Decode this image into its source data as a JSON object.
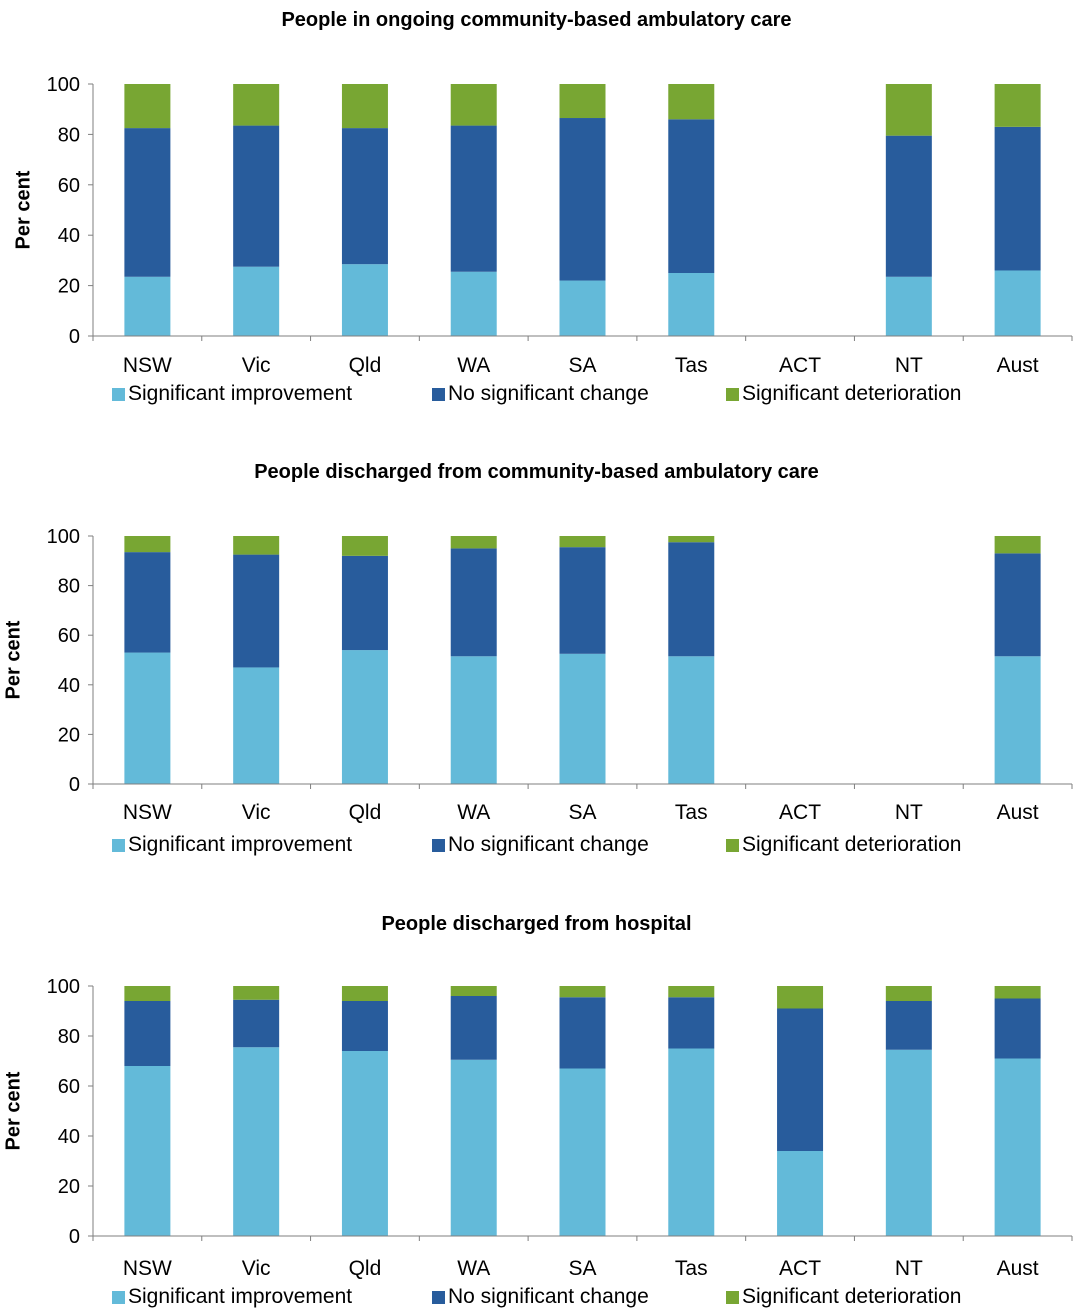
{
  "colors": {
    "improvement": "#63bad9",
    "no_change": "#285c9c",
    "deterioration": "#78a633",
    "axis": "#7f7f7f"
  },
  "chart_data": [
    {
      "type": "bar",
      "stacked": true,
      "title": "People in ongoing community-based ambulatory care",
      "ylabel": "Per cent",
      "ylim": [
        0,
        100
      ],
      "yticks": [
        0,
        20,
        40,
        60,
        80,
        100
      ],
      "categories": [
        "NSW",
        "Vic",
        "Qld",
        "WA",
        "SA",
        "Tas",
        "ACT",
        "NT",
        "Aust"
      ],
      "series": [
        {
          "name": "Significant improvement",
          "color_key": "improvement",
          "values": [
            23.5,
            27.5,
            28.5,
            25.5,
            22.0,
            25.0,
            null,
            23.5,
            26.0
          ]
        },
        {
          "name": "No significant change",
          "color_key": "no_change",
          "values": [
            59.0,
            56.0,
            54.0,
            58.0,
            64.5,
            61.0,
            null,
            56.0,
            57.0
          ]
        },
        {
          "name": "Significant deterioration",
          "color_key": "deterioration",
          "values": [
            17.5,
            16.5,
            17.5,
            16.5,
            13.5,
            14.0,
            null,
            20.5,
            17.0
          ]
        }
      ],
      "legend": "bottom",
      "grid": false
    },
    {
      "type": "bar",
      "stacked": true,
      "title": "People discharged from community-based ambulatory care",
      "ylabel": "Per cent",
      "ylim": [
        0,
        100
      ],
      "yticks": [
        0,
        20,
        40,
        60,
        80,
        100
      ],
      "categories": [
        "NSW",
        "Vic",
        "Qld",
        "WA",
        "SA",
        "Tas",
        "ACT",
        "NT",
        "Aust"
      ],
      "series": [
        {
          "name": "Significant improvement",
          "color_key": "improvement",
          "values": [
            53.0,
            47.0,
            54.0,
            51.5,
            52.5,
            51.5,
            null,
            null,
            51.5
          ]
        },
        {
          "name": "No significant change",
          "color_key": "no_change",
          "values": [
            40.5,
            45.5,
            38.0,
            43.5,
            43.0,
            46.0,
            null,
            null,
            41.5
          ]
        },
        {
          "name": "Significant deterioration",
          "color_key": "deterioration",
          "values": [
            6.5,
            7.5,
            8.0,
            5.0,
            4.5,
            2.5,
            null,
            null,
            7.0
          ]
        }
      ],
      "legend": "bottom",
      "grid": false
    },
    {
      "type": "bar",
      "stacked": true,
      "title": "People discharged from hospital",
      "ylabel": "Per cent",
      "ylim": [
        0,
        100
      ],
      "yticks": [
        0,
        20,
        40,
        60,
        80,
        100
      ],
      "categories": [
        "NSW",
        "Vic",
        "Qld",
        "WA",
        "SA",
        "Tas",
        "ACT",
        "NT",
        "Aust"
      ],
      "series": [
        {
          "name": "Significant improvement",
          "color_key": "improvement",
          "values": [
            68.0,
            75.5,
            74.0,
            70.5,
            67.0,
            75.0,
            34.0,
            74.5,
            71.0
          ]
        },
        {
          "name": "No significant change",
          "color_key": "no_change",
          "values": [
            26.0,
            19.0,
            20.0,
            25.5,
            28.5,
            20.5,
            57.0,
            19.5,
            24.0
          ]
        },
        {
          "name": "Significant deterioration",
          "color_key": "deterioration",
          "values": [
            6.0,
            5.5,
            6.0,
            4.0,
            4.5,
            4.5,
            9.0,
            6.0,
            5.0
          ]
        }
      ],
      "legend": "bottom",
      "grid": false
    }
  ]
}
